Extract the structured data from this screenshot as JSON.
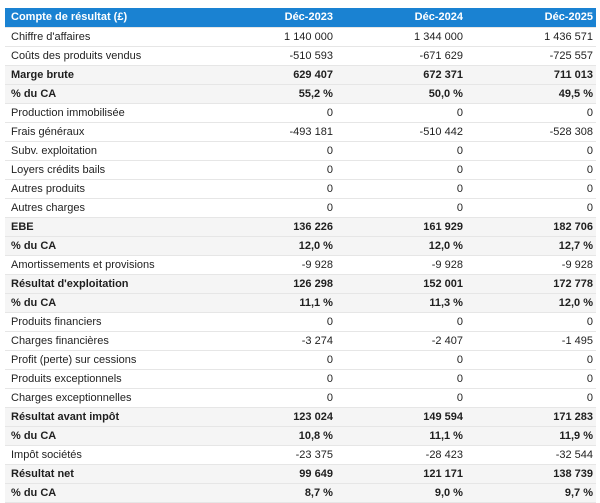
{
  "table": {
    "title": "Compte de résultat (£)",
    "columns": [
      "Déc-2023",
      "Déc-2024",
      "Déc-2025"
    ],
    "rows": [
      {
        "label": "Chiffre d'affaires",
        "values": [
          "1 140 000",
          "1 344 000",
          "1 436 571"
        ],
        "strong": false
      },
      {
        "label": "Coûts des produits vendus",
        "values": [
          "-510 593",
          "-671 629",
          "-725 557"
        ],
        "strong": false
      },
      {
        "label": "Marge brute",
        "values": [
          "629 407",
          "672 371",
          "711 013"
        ],
        "strong": true
      },
      {
        "label": "% du CA",
        "values": [
          "55,2 %",
          "50,0 %",
          "49,5 %"
        ],
        "strong": true
      },
      {
        "label": "Production immobilisée",
        "values": [
          "0",
          "0",
          "0"
        ],
        "strong": false
      },
      {
        "label": "Frais généraux",
        "values": [
          "-493 181",
          "-510 442",
          "-528 308"
        ],
        "strong": false
      },
      {
        "label": "Subv. exploitation",
        "values": [
          "0",
          "0",
          "0"
        ],
        "strong": false
      },
      {
        "label": "Loyers crédits bails",
        "values": [
          "0",
          "0",
          "0"
        ],
        "strong": false
      },
      {
        "label": "Autres produits",
        "values": [
          "0",
          "0",
          "0"
        ],
        "strong": false
      },
      {
        "label": "Autres charges",
        "values": [
          "0",
          "0",
          "0"
        ],
        "strong": false
      },
      {
        "label": "EBE",
        "values": [
          "136 226",
          "161 929",
          "182 706"
        ],
        "strong": true
      },
      {
        "label": "% du CA",
        "values": [
          "12,0 %",
          "12,0 %",
          "12,7 %"
        ],
        "strong": true
      },
      {
        "label": "Amortissements et provisions",
        "values": [
          "-9 928",
          "-9 928",
          "-9 928"
        ],
        "strong": false
      },
      {
        "label": "Résultat d'exploitation",
        "values": [
          "126 298",
          "152 001",
          "172 778"
        ],
        "strong": true
      },
      {
        "label": "% du CA",
        "values": [
          "11,1 %",
          "11,3 %",
          "12,0 %"
        ],
        "strong": true
      },
      {
        "label": "Produits financiers",
        "values": [
          "0",
          "0",
          "0"
        ],
        "strong": false
      },
      {
        "label": "Charges financières",
        "values": [
          "-3 274",
          "-2 407",
          "-1 495"
        ],
        "strong": false
      },
      {
        "label": "Profit (perte) sur cessions",
        "values": [
          "0",
          "0",
          "0"
        ],
        "strong": false
      },
      {
        "label": "Produits exceptionnels",
        "values": [
          "0",
          "0",
          "0"
        ],
        "strong": false
      },
      {
        "label": "Charges exceptionnelles",
        "values": [
          "0",
          "0",
          "0"
        ],
        "strong": false
      },
      {
        "label": "Résultat avant impôt",
        "values": [
          "123 024",
          "149 594",
          "171 283"
        ],
        "strong": true
      },
      {
        "label": "% du CA",
        "values": [
          "10,8 %",
          "11,1 %",
          "11,9 %"
        ],
        "strong": true
      },
      {
        "label": "Impôt sociétés",
        "values": [
          "-23 375",
          "-28 423",
          "-32 544"
        ],
        "strong": false
      },
      {
        "label": "Résultat net",
        "values": [
          "99 649",
          "121 171",
          "138 739"
        ],
        "strong": true
      },
      {
        "label": "% du CA",
        "values": [
          "8,7 %",
          "9,0 %",
          "9,7 %"
        ],
        "strong": true
      }
    ]
  },
  "colors": {
    "header_bg": "#1a82d2",
    "header_text": "#ffffff",
    "strong_row_bg": "#f5f5f5",
    "row_border": "#e6e6e6",
    "text": "#1f1f1f"
  },
  "chart_data": {
    "type": "table",
    "title": "Compte de résultat (£)",
    "columns": [
      "Déc-2023",
      "Déc-2024",
      "Déc-2025"
    ],
    "rows": [
      {
        "label": "Chiffre d'affaires",
        "values": [
          1140000,
          1344000,
          1436571
        ]
      },
      {
        "label": "Coûts des produits vendus",
        "values": [
          -510593,
          -671629,
          -725557
        ]
      },
      {
        "label": "Marge brute",
        "values": [
          629407,
          672371,
          711013
        ]
      },
      {
        "label": "% du CA (marge brute)",
        "values": [
          55.2,
          50.0,
          49.5
        ]
      },
      {
        "label": "Production immobilisée",
        "values": [
          0,
          0,
          0
        ]
      },
      {
        "label": "Frais généraux",
        "values": [
          -493181,
          -510442,
          -528308
        ]
      },
      {
        "label": "Subv. exploitation",
        "values": [
          0,
          0,
          0
        ]
      },
      {
        "label": "Loyers crédits bails",
        "values": [
          0,
          0,
          0
        ]
      },
      {
        "label": "Autres produits",
        "values": [
          0,
          0,
          0
        ]
      },
      {
        "label": "Autres charges",
        "values": [
          0,
          0,
          0
        ]
      },
      {
        "label": "EBE",
        "values": [
          136226,
          161929,
          182706
        ]
      },
      {
        "label": "% du CA (EBE)",
        "values": [
          12.0,
          12.0,
          12.7
        ]
      },
      {
        "label": "Amortissements et provisions",
        "values": [
          -9928,
          -9928,
          -9928
        ]
      },
      {
        "label": "Résultat d'exploitation",
        "values": [
          126298,
          152001,
          172778
        ]
      },
      {
        "label": "% du CA (résultat d'exploitation)",
        "values": [
          11.1,
          11.3,
          12.0
        ]
      },
      {
        "label": "Produits financiers",
        "values": [
          0,
          0,
          0
        ]
      },
      {
        "label": "Charges financières",
        "values": [
          -3274,
          -2407,
          -1495
        ]
      },
      {
        "label": "Profit (perte) sur cessions",
        "values": [
          0,
          0,
          0
        ]
      },
      {
        "label": "Produits exceptionnels",
        "values": [
          0,
          0,
          0
        ]
      },
      {
        "label": "Charges exceptionnelles",
        "values": [
          0,
          0,
          0
        ]
      },
      {
        "label": "Résultat avant impôt",
        "values": [
          123024,
          149594,
          171283
        ]
      },
      {
        "label": "% du CA (résultat avant impôt)",
        "values": [
          10.8,
          11.1,
          11.9
        ]
      },
      {
        "label": "Impôt sociétés",
        "values": [
          -23375,
          -28423,
          -32544
        ]
      },
      {
        "label": "Résultat net",
        "values": [
          99649,
          121171,
          138739
        ]
      },
      {
        "label": "% du CA (résultat net)",
        "values": [
          8.7,
          9.0,
          9.7
        ]
      }
    ]
  }
}
